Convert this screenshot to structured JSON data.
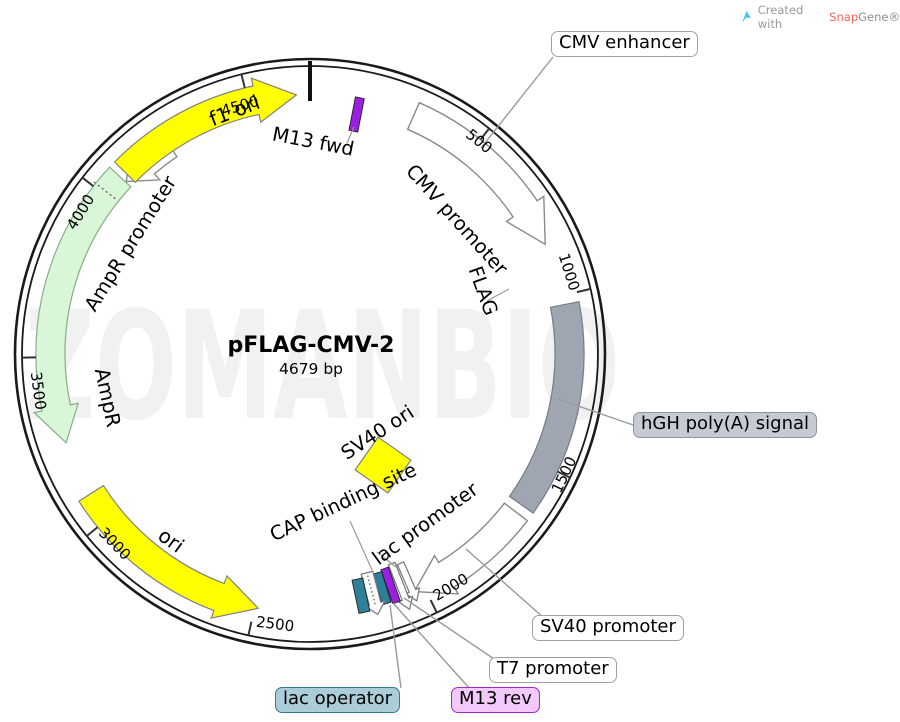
{
  "credit": {
    "created_with": "Created with",
    "brand_part1": "Snap",
    "brand_part2": "Gene®"
  },
  "watermark": "ZOMANBIO",
  "plasmid": {
    "name": "pFLAG-CMV-2",
    "size_label": "4679 bp",
    "total_bp": 4679
  },
  "ticks": {
    "values": [
      500,
      1000,
      1500,
      2000,
      2500,
      3000,
      3500,
      4000,
      4500
    ]
  },
  "features": {
    "cmv_enhancer": {
      "label": "CMV enhancer",
      "color": "#ffffff"
    },
    "cmv_promoter": {
      "label": "CMV promoter",
      "color": "#ffffff"
    },
    "flag": {
      "label": "FLAG",
      "color": "#d795ae"
    },
    "hgh_polya": {
      "label": "hGH poly(A) signal",
      "color": "#9fa6b2"
    },
    "sv40_promoter": {
      "label": "SV40 promoter",
      "color": "#ffffff"
    },
    "t7_promoter": {
      "label": "T7 promoter",
      "color": "#ffffff"
    },
    "m13_rev": {
      "label": "M13 rev",
      "color": "#9a1fe0"
    },
    "lac_operator": {
      "label": "lac operator",
      "color": "#2e8099"
    },
    "cap_binding_site": {
      "label": "CAP binding site",
      "color": "#ffffff"
    },
    "lac_promoter": {
      "label": "lac promoter",
      "color": "#ffffff"
    },
    "sv40_ori": {
      "label": "SV40 ori",
      "color": "#ffff00"
    },
    "ori": {
      "label": "ori",
      "color": "#ffff00"
    },
    "ampr": {
      "label": "AmpR",
      "color": "#d9f6d9"
    },
    "ampr_promoter": {
      "label": "AmpR promoter",
      "color": "#ffffff"
    },
    "f1_ori": {
      "label": "f1 ori",
      "color": "#ffff00"
    },
    "m13_fwd": {
      "label": "M13 fwd",
      "color": "#9a1fe0"
    }
  },
  "callout_styles": {
    "default": {
      "bg": "#ffffff",
      "border": "#a0a0a0"
    },
    "hgh_polya": {
      "bg": "#c6cbd3",
      "border": "#8d949e"
    },
    "m13_rev": {
      "bg": "#f2c9fa",
      "border": "#a326c9"
    },
    "lac_operator": {
      "bg": "#aacdd7",
      "border": "#39798c"
    }
  }
}
